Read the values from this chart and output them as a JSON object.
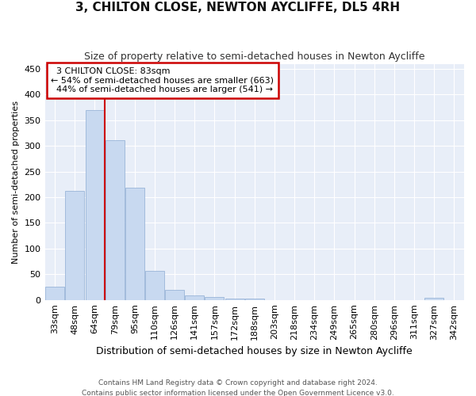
{
  "title": "3, CHILTON CLOSE, NEWTON AYCLIFFE, DL5 4RH",
  "subtitle": "Size of property relative to semi-detached houses in Newton Aycliffe",
  "xlabel": "Distribution of semi-detached houses by size in Newton Aycliffe",
  "ylabel": "Number of semi-detached properties",
  "footnote1": "Contains HM Land Registry data © Crown copyright and database right 2024.",
  "footnote2": "Contains public sector information licensed under the Open Government Licence v3.0.",
  "categories": [
    "33sqm",
    "48sqm",
    "64sqm",
    "79sqm",
    "95sqm",
    "110sqm",
    "126sqm",
    "141sqm",
    "157sqm",
    "172sqm",
    "188sqm",
    "203sqm",
    "218sqm",
    "234sqm",
    "249sqm",
    "265sqm",
    "280sqm",
    "296sqm",
    "311sqm",
    "327sqm",
    "342sqm"
  ],
  "values": [
    25,
    212,
    370,
    311,
    218,
    57,
    20,
    8,
    6,
    3,
    2,
    0,
    0,
    0,
    0,
    0,
    0,
    0,
    0,
    4,
    0
  ],
  "bar_color": "#c8d9f0",
  "bar_edge_color": "#9ab5d8",
  "property_label": "3 CHILTON CLOSE: 83sqm",
  "pct_smaller": 54,
  "count_smaller": 663,
  "pct_larger": 44,
  "count_larger": 541,
  "vline_color": "#cc0000",
  "vline_x_index": 2.5,
  "annotation_box_color": "#ffffff",
  "annotation_box_edge": "#cc0000",
  "ylim": [
    0,
    460
  ],
  "yticks": [
    0,
    50,
    100,
    150,
    200,
    250,
    300,
    350,
    400,
    450
  ],
  "bg_color": "#e8eef8",
  "grid_color": "#ffffff",
  "fig_bg_color": "#ffffff",
  "title_fontsize": 11,
  "subtitle_fontsize": 9,
  "xlabel_fontsize": 9,
  "ylabel_fontsize": 8,
  "tick_fontsize": 8,
  "annot_fontsize": 8,
  "footnote_fontsize": 6.5
}
